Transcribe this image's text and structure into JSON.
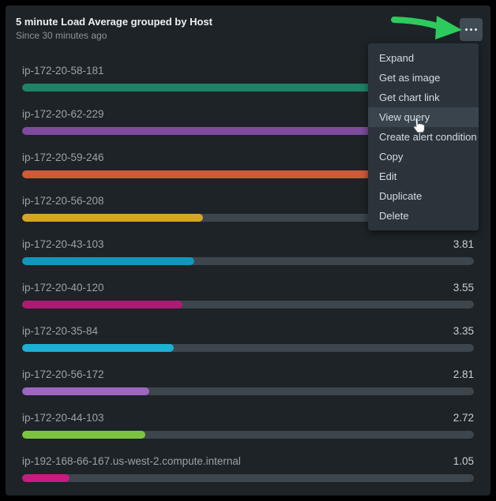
{
  "header": {
    "title": "5 minute Load Average grouped by Host",
    "subtitle": "Since 30 minutes ago"
  },
  "menu_button": {
    "icon": "ellipsis-icon"
  },
  "annotation": {
    "arrow_color": "#2dcb5e"
  },
  "context_menu": {
    "items": [
      {
        "label": "Expand",
        "highlighted": false
      },
      {
        "label": "Get as image",
        "highlighted": false
      },
      {
        "label": "Get chart link",
        "highlighted": false
      },
      {
        "label": "View query",
        "highlighted": true
      },
      {
        "label": "Create alert condition",
        "highlighted": false
      },
      {
        "label": "Copy",
        "highlighted": false
      },
      {
        "label": "Edit",
        "highlighted": false
      },
      {
        "label": "Duplicate",
        "highlighted": false
      },
      {
        "label": "Delete",
        "highlighted": false
      }
    ]
  },
  "rows": [
    {
      "host": "ip-172-20-58-181",
      "value": "",
      "fraction": 1.0,
      "color": "#1e8268"
    },
    {
      "host": "ip-172-20-62-229",
      "value": "",
      "fraction": 0.97,
      "color": "#7e4b9e"
    },
    {
      "host": "ip-172-20-59-246",
      "value": "",
      "fraction": 0.94,
      "color": "#d05a38"
    },
    {
      "host": "ip-172-20-56-208",
      "value": "",
      "fraction": 0.4,
      "color": "#d6a622"
    },
    {
      "host": "ip-172-20-43-103",
      "value": "3.81",
      "fraction": 0.381,
      "color": "#1296bc"
    },
    {
      "host": "ip-172-20-40-120",
      "value": "3.55",
      "fraction": 0.355,
      "color": "#ae1a73"
    },
    {
      "host": "ip-172-20-35-84",
      "value": "3.35",
      "fraction": 0.335,
      "color": "#1cb0d4"
    },
    {
      "host": "ip-172-20-56-172",
      "value": "2.81",
      "fraction": 0.281,
      "color": "#9d66c0"
    },
    {
      "host": "ip-172-20-44-103",
      "value": "2.72",
      "fraction": 0.272,
      "color": "#7cc440"
    },
    {
      "host": "ip-192-168-66-167.us-west-2.compute.internal",
      "value": "1.05",
      "fraction": 0.105,
      "color": "#c51c80"
    }
  ],
  "chart_data": {
    "type": "bar",
    "orientation": "horizontal",
    "title": "5 minute Load Average grouped by Host",
    "subtitle": "Since 30 minutes ago",
    "categories": [
      "ip-172-20-58-181",
      "ip-172-20-62-229",
      "ip-172-20-59-246",
      "ip-172-20-56-208",
      "ip-172-20-43-103",
      "ip-172-20-40-120",
      "ip-172-20-35-84",
      "ip-172-20-56-172",
      "ip-172-20-44-103",
      "ip-192-168-66-167.us-west-2.compute.internal"
    ],
    "values": [
      null,
      null,
      null,
      null,
      3.81,
      3.55,
      3.35,
      2.81,
      2.72,
      1.05
    ],
    "xlim": [
      0,
      10
    ],
    "note": "values of top four rows are occluded by the open context menu",
    "grid": false,
    "legend": false
  },
  "colors": {
    "card_bg": "#1d2327",
    "track": "#3d454d",
    "menu_bg": "#2b343b",
    "menu_hover": "#3a444c",
    "button_bg": "#404b53"
  }
}
